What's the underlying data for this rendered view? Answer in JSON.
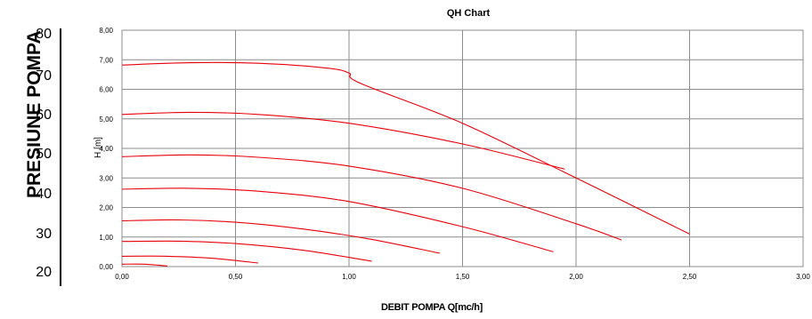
{
  "side_scale": {
    "title": "PRESIUNE POMPA",
    "ticks": [
      "80",
      "70",
      "60",
      "50",
      "40",
      "30",
      "20"
    ]
  },
  "chart_data": {
    "type": "line",
    "title": "QH Chart",
    "xlabel": "DEBIT POMPA Q[mc/h]",
    "ylabel": "H [m]",
    "xlim": [
      0,
      3
    ],
    "ylim": [
      0,
      8
    ],
    "x_ticks": [
      "0,00",
      "0,50",
      "1,00",
      "1,50",
      "2,00",
      "2,50",
      "3,00"
    ],
    "y_ticks": [
      "0,00",
      "1,00",
      "2,00",
      "3,00",
      "4,00",
      "5,00",
      "6,00",
      "7,00",
      "8,00"
    ],
    "grid": true,
    "line_color": "#e8000b",
    "series": [
      {
        "x": [
          0,
          0.3,
          0.6,
          0.9,
          1.0,
          1.05,
          1.5,
          2.0,
          2.5
        ],
        "y": [
          6.82,
          6.9,
          6.88,
          6.72,
          6.55,
          6.2,
          4.85,
          3.0,
          1.1
        ]
      },
      {
        "x": [
          0,
          0.3,
          0.6,
          1.0,
          1.5,
          1.95
        ],
        "y": [
          5.15,
          5.22,
          5.15,
          4.85,
          4.15,
          3.3
        ]
      },
      {
        "x": [
          0,
          0.3,
          0.6,
          1.0,
          1.5,
          2.0,
          2.2
        ],
        "y": [
          3.72,
          3.78,
          3.7,
          3.4,
          2.65,
          1.45,
          0.9
        ]
      },
      {
        "x": [
          0,
          0.3,
          0.6,
          1.0,
          1.5,
          1.9
        ],
        "y": [
          2.62,
          2.65,
          2.55,
          2.2,
          1.35,
          0.5
        ]
      },
      {
        "x": [
          0,
          0.25,
          0.5,
          0.8,
          1.1,
          1.4
        ],
        "y": [
          1.55,
          1.58,
          1.5,
          1.27,
          0.92,
          0.45
        ]
      },
      {
        "x": [
          0,
          0.25,
          0.5,
          0.8,
          1.1
        ],
        "y": [
          0.85,
          0.86,
          0.78,
          0.55,
          0.18
        ]
      },
      {
        "x": [
          0,
          0.2,
          0.4,
          0.6
        ],
        "y": [
          0.35,
          0.35,
          0.28,
          0.12
        ]
      },
      {
        "x": [
          0,
          0.1,
          0.2
        ],
        "y": [
          0.08,
          0.08,
          0.02
        ]
      }
    ]
  }
}
